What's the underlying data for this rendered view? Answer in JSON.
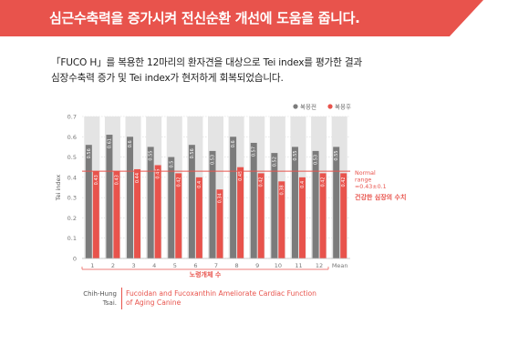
{
  "banner": {
    "title": "심근수축력을 증가시켜 전신순환 개선에 도움을 줍니다."
  },
  "intro": {
    "line1": "「FUCO H」를 복용한 12마리의  환자견을 대상으로 Tei index를 평가한 결과",
    "line2": "심장수축력 증가 및 Tei index가 현저하게 회복되었습니다."
  },
  "colors": {
    "before": "#7b7b7b",
    "after": "#e8534c",
    "background_bar": "#e4e4e4",
    "accent": "#e8534c"
  },
  "chart_data": {
    "type": "bar",
    "ylabel": "Tei index",
    "xlabel": "노령개체 수",
    "ylim": [
      0,
      0.7
    ],
    "yticks": [
      "0",
      "0.1",
      "0.2",
      "0.3",
      "0.4",
      "0.5",
      "0.6",
      "0.7"
    ],
    "categories": [
      "1",
      "2",
      "3",
      "4",
      "5",
      "6",
      "7",
      "8",
      "9",
      "10",
      "11",
      "12",
      "Mean"
    ],
    "series": [
      {
        "name": "복용전",
        "values": [
          0.56,
          0.61,
          0.6,
          0.55,
          0.5,
          0.56,
          0.53,
          0.6,
          0.57,
          0.52,
          0.55,
          0.53,
          0.55
        ],
        "labels": [
          "0.56",
          "0.61",
          "0.6",
          "0.55",
          "0.5",
          "0.56",
          "0.53",
          "0.6",
          "0.57",
          "0.52",
          "0.55",
          "0.53",
          "0.55"
        ]
      },
      {
        "name": "복용후",
        "values": [
          0.43,
          0.43,
          0.44,
          0.46,
          0.42,
          0.4,
          0.34,
          0.45,
          0.42,
          0.38,
          0.4,
          0.42,
          0.42
        ],
        "labels": [
          "0.43",
          "0.43",
          "0.44",
          "0.46",
          "0.42",
          "0.4",
          "0.34",
          "0.45",
          "0.42",
          "0.38",
          "0.4",
          "0.42",
          "0.42"
        ]
      }
    ],
    "normal_line": 0.43,
    "normal_label": [
      "Normal",
      "range",
      "=0.43±0.1"
    ],
    "annotation": "건강한 심장의 수치",
    "grid": true,
    "legend_position": "top-right"
  },
  "citation": {
    "author_line1": "Chih-Hung",
    "author_line2": "Tsai.",
    "title_line1": "Fucoidan and Fucoxanthin Ameliorate Cardiac Function",
    "title_line2": "of Aging Canine"
  }
}
